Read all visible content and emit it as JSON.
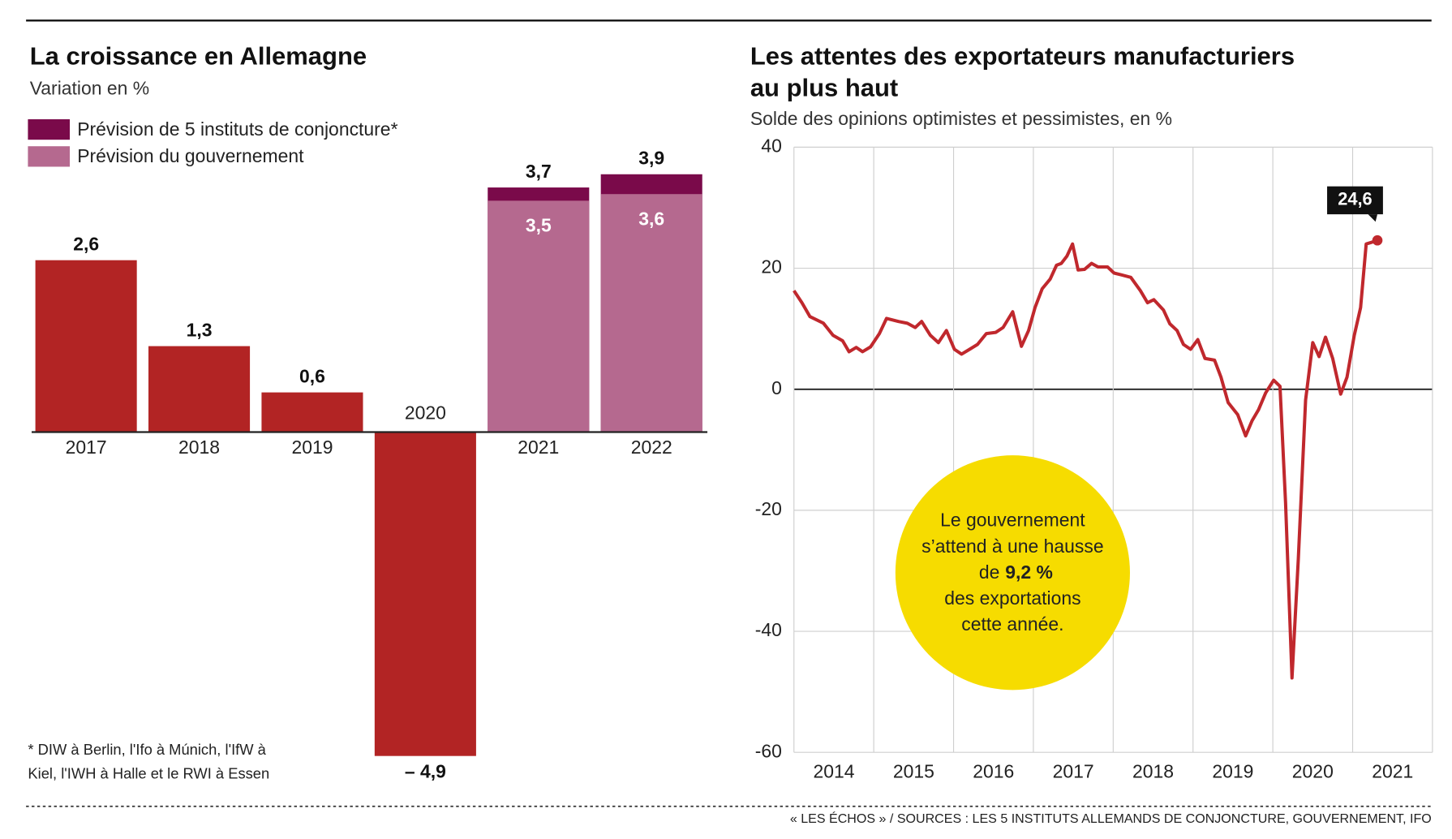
{
  "chart_data": [
    {
      "type": "bar",
      "title": "La croissance en Allemagne",
      "subtitle": "Variation en %",
      "categories": [
        "2017",
        "2018",
        "2019",
        "2020",
        "2021",
        "2022"
      ],
      "series": [
        {
          "color": "#b22424",
          "values": [
            2.6,
            1.3,
            0.6,
            -4.9,
            null,
            null
          ],
          "value_labels": [
            "2,6",
            "1,3",
            "0,6",
            "– 4,9",
            null,
            null
          ]
        },
        {
          "name": "Prévision de 5 instituts de conjoncture*",
          "color": "#7a0a4a",
          "values": [
            null,
            null,
            null,
            null,
            3.7,
            3.9
          ],
          "value_labels": [
            null,
            null,
            null,
            null,
            "3,7",
            "3,9"
          ]
        },
        {
          "name": "Prévision du gouvernement",
          "color": "#b5698f",
          "values": [
            null,
            null,
            null,
            null,
            3.5,
            3.6
          ],
          "value_labels": [
            null,
            null,
            null,
            null,
            "3,5",
            "3,6"
          ]
        }
      ],
      "footnote": [
        "* DIW à Berlin, l'Ifo à Múnich, l'IfW à",
        "Kiel, l'IWH à Halle et le RWI à Essen"
      ]
    },
    {
      "type": "line",
      "title": [
        "Les attentes des exportateurs manufacturiers",
        "au plus haut"
      ],
      "subtitle": "Solde des opinions optimistes et pessimistes, en %",
      "xlim": [
        2014,
        2022
      ],
      "xticks": [
        2014,
        2015,
        2016,
        2017,
        2018,
        2019,
        2020,
        2021
      ],
      "ylim": [
        -60,
        40
      ],
      "yticks": [
        40,
        20,
        0,
        -20,
        -40,
        -60
      ],
      "grid": true,
      "series": [
        {
          "color": "#c0282d",
          "x": [
            2014.0,
            2014.1,
            2014.2,
            2014.37,
            2014.49,
            2014.61,
            2014.69,
            2014.78,
            2014.86,
            2014.96,
            2015.07,
            2015.16,
            2015.31,
            2015.42,
            2015.52,
            2015.6,
            2015.71,
            2015.81,
            2015.91,
            2016.01,
            2016.1,
            2016.2,
            2016.3,
            2016.41,
            2016.53,
            2016.62,
            2016.74,
            2016.85,
            2016.94,
            2017.02,
            2017.11,
            2017.21,
            2017.29,
            2017.35,
            2017.42,
            2017.49,
            2017.56,
            2017.64,
            2017.73,
            2017.81,
            2017.93,
            2018.01,
            2018.1,
            2018.22,
            2018.34,
            2018.43,
            2018.51,
            2018.63,
            2018.71,
            2018.8,
            2018.88,
            2018.97,
            2019.06,
            2019.15,
            2019.27,
            2019.35,
            2019.44,
            2019.56,
            2019.66,
            2019.74,
            2019.82,
            2019.91,
            2020.01,
            2020.09,
            2020.16,
            2020.24,
            2020.32,
            2020.41,
            2020.5,
            2020.58,
            2020.66,
            2020.75,
            2020.85,
            2020.93,
            2021.02,
            2021.1,
            2021.17,
            2021.24,
            2021.31
          ],
          "values": [
            16.3,
            14.3,
            12,
            10.9,
            8.9,
            8,
            6.2,
            6.9,
            6.2,
            7,
            9.2,
            11.7,
            11.2,
            10.9,
            10.2,
            11.2,
            8.9,
            7.7,
            9.7,
            6.6,
            5.8,
            6.6,
            7.4,
            9.2,
            9.4,
            10.2,
            12.8,
            7.1,
            9.7,
            13.5,
            16.6,
            18.2,
            20.5,
            20.8,
            22,
            24,
            19.7,
            19.8,
            20.8,
            20.2,
            20.2,
            19.2,
            18.9,
            18.5,
            16.3,
            14.3,
            14.8,
            13.1,
            10.8,
            9.7,
            7.4,
            6.6,
            8.2,
            5.1,
            4.8,
            2,
            -2.2,
            -4.2,
            -7.7,
            -5.2,
            -3.4,
            -0.6,
            1.5,
            0.5,
            -18.8,
            -47.7,
            -28,
            -1.8,
            7.7,
            5.4,
            8.6,
            5.1,
            -0.8,
            2,
            8.9,
            13.5,
            24,
            24.3,
            24.6
          ],
          "value_labels": [
            null,
            null,
            null,
            null,
            null,
            null,
            null,
            null,
            null,
            null,
            null,
            null,
            null,
            null,
            null,
            null,
            null,
            null,
            null,
            null,
            null,
            null,
            null,
            null,
            null,
            null,
            null,
            null,
            null,
            null,
            null,
            null,
            null,
            null,
            null,
            null,
            null,
            null,
            null,
            null,
            null,
            null,
            null,
            null,
            null,
            null,
            null,
            null,
            null,
            null,
            null,
            null,
            null,
            null,
            null,
            null,
            null,
            null,
            null,
            null,
            null,
            null,
            null,
            null,
            null,
            null,
            null,
            null,
            null,
            null,
            null,
            null,
            null,
            null,
            null,
            null,
            null,
            null,
            "24,6"
          ]
        }
      ],
      "annotation": [
        "Le gouvernement",
        "s’attend à une hausse",
        "de",
        "9,2 %",
        "des exportations",
        "cette année."
      ]
    }
  ],
  "source": "« LES ÉCHOS » / SOURCES : LES 5 INSTITUTS ALLEMANDS DE CONJONCTURE, GOUVERNEMENT, IFO"
}
